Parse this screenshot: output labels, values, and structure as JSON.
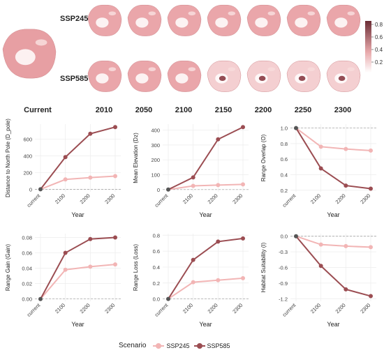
{
  "maps": {
    "row_labels": [
      "SSP245",
      "SSP585"
    ],
    "column_labels": [
      "Current",
      "2010",
      "2050",
      "2100",
      "2150",
      "2200",
      "2250",
      "2300"
    ],
    "colorbar_ticks": [
      "0.8",
      "0.6",
      "0.4",
      "0.2"
    ],
    "colorbar_low": "#ffffff",
    "colorbar_high": "#6b2d35"
  },
  "legend": {
    "title": "Scenario",
    "items": [
      {
        "label": "SSP245",
        "color": "#f2b5b5"
      },
      {
        "label": "SSP585",
        "color": "#9b4d52"
      }
    ]
  },
  "chart_data": [
    {
      "type": "line",
      "ylabel": "Distance to North Pole (D_pole)",
      "xlabel": "Year",
      "categories": [
        "current",
        "2100",
        "2200",
        "2300"
      ],
      "yticks": [
        0,
        200,
        400,
        600
      ],
      "ylim": [
        -30,
        780
      ],
      "baseline": 0,
      "series": [
        {
          "name": "SSP245",
          "values": [
            0,
            118,
            140,
            158
          ]
        },
        {
          "name": "SSP585",
          "values": [
            0,
            385,
            665,
            745
          ]
        }
      ]
    },
    {
      "type": "line",
      "ylabel": "Mean Elevation (Dz)",
      "xlabel": "Year",
      "categories": [
        "current",
        "2100",
        "2200",
        "2300"
      ],
      "yticks": [
        0,
        100,
        200,
        300,
        400
      ],
      "ylim": [
        -15,
        440
      ],
      "baseline": 0,
      "series": [
        {
          "name": "SSP245",
          "values": [
            0,
            25,
            30,
            35
          ]
        },
        {
          "name": "SSP585",
          "values": [
            0,
            82,
            338,
            420
          ]
        }
      ]
    },
    {
      "type": "line",
      "ylabel": "Range Overlap (O)",
      "xlabel": "Year",
      "categories": [
        "current",
        "2100",
        "2200",
        "2300"
      ],
      "yticks": [
        0.2,
        0.4,
        0.6,
        0.8,
        1.0
      ],
      "ytick_labels": [
        "0.2",
        "0.4",
        "0.6",
        "0.8",
        "1.0"
      ],
      "ylim": [
        0.18,
        1.05
      ],
      "baseline": 1.0,
      "series": [
        {
          "name": "SSP245",
          "values": [
            1.0,
            0.76,
            0.73,
            0.71
          ]
        },
        {
          "name": "SSP585",
          "values": [
            1.0,
            0.48,
            0.26,
            0.22
          ]
        }
      ]
    },
    {
      "type": "line",
      "ylabel": "Range Gain (Gain)",
      "xlabel": "Year",
      "categories": [
        "current",
        "2100",
        "2200",
        "2300"
      ],
      "yticks": [
        0,
        0.02,
        0.04,
        0.06,
        0.08
      ],
      "ytick_labels": [
        "0.00",
        "0.02",
        "0.04",
        "0.06",
        "0.08"
      ],
      "ylim": [
        -0.003,
        0.085
      ],
      "baseline": 0,
      "series": [
        {
          "name": "SSP245",
          "values": [
            0,
            0.038,
            0.042,
            0.045
          ]
        },
        {
          "name": "SSP585",
          "values": [
            0,
            0.06,
            0.078,
            0.08
          ]
        }
      ]
    },
    {
      "type": "line",
      "ylabel": "Range Loss (Loss)",
      "xlabel": "Year",
      "categories": [
        "current",
        "2100",
        "2200",
        "2300"
      ],
      "yticks": [
        0,
        0.2,
        0.4,
        0.6,
        0.8
      ],
      "ytick_labels": [
        "0.0",
        "0.2",
        "0.4",
        "0.6",
        "0.8"
      ],
      "ylim": [
        -0.03,
        0.82
      ],
      "baseline": 0,
      "series": [
        {
          "name": "SSP245",
          "values": [
            0,
            0.21,
            0.235,
            0.26
          ]
        },
        {
          "name": "SSP585",
          "values": [
            0,
            0.49,
            0.72,
            0.76
          ]
        }
      ]
    },
    {
      "type": "line",
      "ylabel": "Habitat Suitability (I)",
      "xlabel": "Year",
      "categories": [
        "current",
        "2100",
        "2200",
        "2300"
      ],
      "yticks": [
        0,
        -0.3,
        -0.6,
        -0.9,
        -1.2
      ],
      "ytick_labels": [
        "0.0",
        "-0.3",
        "-0.6",
        "-0.9",
        "-1.2"
      ],
      "ylim": [
        -1.25,
        0.05
      ],
      "baseline": 0,
      "series": [
        {
          "name": "SSP245",
          "values": [
            0,
            -0.16,
            -0.19,
            -0.21
          ]
        },
        {
          "name": "SSP585",
          "values": [
            0,
            -0.57,
            -1.02,
            -1.15
          ]
        }
      ]
    }
  ]
}
